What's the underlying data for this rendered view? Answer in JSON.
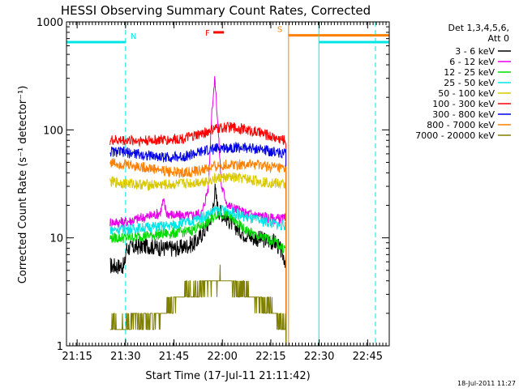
{
  "chart_data": {
    "type": "line",
    "title": "HESSI Observing Summary Count Rates, Corrected",
    "xlabel": "Start Time (17-Jul-11 21:11:42)",
    "ylabel": "Corrected Count Rate (s⁻¹ detector⁻¹)",
    "x_axis": {
      "start": "21:11:42",
      "end": "22:51:42",
      "min_minutes": 0,
      "max_minutes": 100
    },
    "y_scale": "log",
    "ylim": [
      1,
      1000
    ],
    "x_ticks": [
      {
        "label": "21:15",
        "minutes": 3.3
      },
      {
        "label": "21:30",
        "minutes": 18.3
      },
      {
        "label": "21:45",
        "minutes": 33.3
      },
      {
        "label": "22:00",
        "minutes": 48.3
      },
      {
        "label": "22:15",
        "minutes": 63.3
      },
      {
        "label": "22:30",
        "minutes": 78.3
      },
      {
        "label": "22:45",
        "minutes": 93.3
      }
    ],
    "y_ticks": [
      {
        "label": "1",
        "value": 1
      },
      {
        "label": "10",
        "value": 10
      },
      {
        "label": "100",
        "value": 100
      },
      {
        "label": "1000",
        "value": 1000
      }
    ],
    "legend": {
      "placement": "right",
      "header": [
        "Det 1,3,4,5,6,",
        "Att 0"
      ],
      "entries": [
        {
          "label": "3 - 6 keV",
          "color": "#000000"
        },
        {
          "label": "6 - 12 keV",
          "color": "#e600e6"
        },
        {
          "label": "12 - 25 keV",
          "color": "#00dd00"
        },
        {
          "label": "25 - 50 keV",
          "color": "#00e6e6"
        },
        {
          "label": "50 - 100 keV",
          "color": "#d8c800"
        },
        {
          "label": "100 - 300 keV",
          "color": "#ff0000"
        },
        {
          "label": "300 - 800 keV",
          "color": "#0000e6"
        },
        {
          "label": "800 - 7000 keV",
          "color": "#ff8000"
        },
        {
          "label": "7000 - 20000 keV",
          "color": "#808000"
        }
      ]
    },
    "series": [
      {
        "name": "3 - 6 keV",
        "color": "#000000",
        "points": [
          [
            13.5,
            5.5
          ],
          [
            18,
            5.5
          ],
          [
            18.5,
            8
          ],
          [
            25,
            8.5
          ],
          [
            30,
            8
          ],
          [
            35,
            8
          ],
          [
            40,
            9
          ],
          [
            43,
            12
          ],
          [
            45,
            16
          ],
          [
            46,
            28
          ],
          [
            47,
            18
          ],
          [
            49,
            16
          ],
          [
            52,
            13
          ],
          [
            55,
            11
          ],
          [
            58,
            10
          ],
          [
            62,
            9.5
          ],
          [
            65,
            9
          ],
          [
            67,
            7
          ],
          [
            68,
            6
          ]
        ]
      },
      {
        "name": "6 - 12 keV",
        "color": "#e600e6",
        "points": [
          [
            13.5,
            14
          ],
          [
            18,
            14
          ],
          [
            22,
            15
          ],
          [
            26,
            16
          ],
          [
            29,
            17
          ],
          [
            30,
            22
          ],
          [
            31,
            17
          ],
          [
            34,
            16
          ],
          [
            38,
            16
          ],
          [
            42,
            17
          ],
          [
            44,
            30
          ],
          [
            45,
            150
          ],
          [
            46,
            300
          ],
          [
            47,
            100
          ],
          [
            48,
            30
          ],
          [
            50,
            20
          ],
          [
            55,
            17
          ],
          [
            60,
            16
          ],
          [
            64,
            15
          ],
          [
            67,
            15
          ],
          [
            68,
            15
          ]
        ]
      },
      {
        "name": "12 - 25 keV",
        "color": "#00dd00",
        "points": [
          [
            13.5,
            10
          ],
          [
            18,
            10
          ],
          [
            25,
            10.5
          ],
          [
            32,
            11
          ],
          [
            38,
            11.5
          ],
          [
            42,
            13
          ],
          [
            45,
            15
          ],
          [
            47,
            17
          ],
          [
            50,
            16
          ],
          [
            55,
            12
          ],
          [
            60,
            10
          ],
          [
            64,
            9.5
          ],
          [
            67,
            8
          ],
          [
            68,
            8
          ]
        ]
      },
      {
        "name": "25 - 50 keV",
        "color": "#00e6e6",
        "points": [
          [
            13.5,
            12
          ],
          [
            18,
            12
          ],
          [
            25,
            12.5
          ],
          [
            32,
            13
          ],
          [
            38,
            14
          ],
          [
            43,
            16
          ],
          [
            46,
            18
          ],
          [
            49,
            18
          ],
          [
            52,
            17
          ],
          [
            57,
            15
          ],
          [
            62,
            14
          ],
          [
            67,
            13
          ],
          [
            68,
            13
          ]
        ]
      },
      {
        "name": "50 - 100 keV",
        "color": "#d8c800",
        "points": [
          [
            13.5,
            33
          ],
          [
            18,
            32
          ],
          [
            25,
            31
          ],
          [
            32,
            31
          ],
          [
            38,
            32
          ],
          [
            44,
            34
          ],
          [
            48,
            36
          ],
          [
            52,
            36
          ],
          [
            56,
            35
          ],
          [
            61,
            33
          ],
          [
            65,
            32
          ],
          [
            68,
            31
          ]
        ]
      },
      {
        "name": "100 - 300 keV",
        "color": "#ff0000",
        "points": [
          [
            13.5,
            80
          ],
          [
            18,
            80
          ],
          [
            25,
            80
          ],
          [
            32,
            81
          ],
          [
            38,
            85
          ],
          [
            42,
            92
          ],
          [
            46,
            102
          ],
          [
            50,
            106
          ],
          [
            54,
            103
          ],
          [
            58,
            97
          ],
          [
            62,
            90
          ],
          [
            65,
            84
          ],
          [
            68,
            80
          ]
        ]
      },
      {
        "name": "300 - 800 keV",
        "color": "#0000e6",
        "points": [
          [
            13.5,
            63
          ],
          [
            18,
            62
          ],
          [
            25,
            58
          ],
          [
            30,
            56
          ],
          [
            35,
            56
          ],
          [
            40,
            60
          ],
          [
            44,
            65
          ],
          [
            48,
            68
          ],
          [
            52,
            69
          ],
          [
            56,
            68
          ],
          [
            60,
            66
          ],
          [
            64,
            63
          ],
          [
            68,
            60
          ]
        ]
      },
      {
        "name": "800 - 7000 keV",
        "color": "#ff8000",
        "points": [
          [
            13.5,
            50
          ],
          [
            18,
            48
          ],
          [
            24,
            45
          ],
          [
            30,
            42
          ],
          [
            35,
            40
          ],
          [
            40,
            41
          ],
          [
            44,
            44
          ],
          [
            48,
            47
          ],
          [
            52,
            48
          ],
          [
            56,
            48
          ],
          [
            60,
            47
          ],
          [
            64,
            45
          ],
          [
            68,
            43
          ]
        ]
      },
      {
        "name": "7000 - 20000 keV",
        "color": "#808000",
        "points": [
          [
            13.5,
            1.5
          ],
          [
            18,
            1.6
          ],
          [
            25,
            1.7
          ],
          [
            30,
            2
          ],
          [
            35,
            2.8
          ],
          [
            40,
            3.3
          ],
          [
            43,
            3.7
          ],
          [
            47,
            4
          ],
          [
            50,
            4
          ],
          [
            53,
            3.6
          ],
          [
            56,
            3
          ],
          [
            60,
            2.5
          ],
          [
            64,
            2
          ],
          [
            67,
            1.5
          ],
          [
            68,
            1.5
          ]
        ]
      }
    ],
    "flags": [
      {
        "label": "N",
        "color": "#00e6e6",
        "start": 0,
        "end": 18.3,
        "value": 650
      },
      {
        "label": "S",
        "color": "#ff8000",
        "start": 68.8,
        "end": 100,
        "value": 750
      },
      {
        "label": "",
        "color": "#00e6e6",
        "start": 78.2,
        "end": 100,
        "value": 650
      },
      {
        "label": "F",
        "color": "#ff0000",
        "start": 45.5,
        "end": 48.8,
        "value": 800
      }
    ],
    "timestamp": "18-Jul-2011 11:27"
  }
}
